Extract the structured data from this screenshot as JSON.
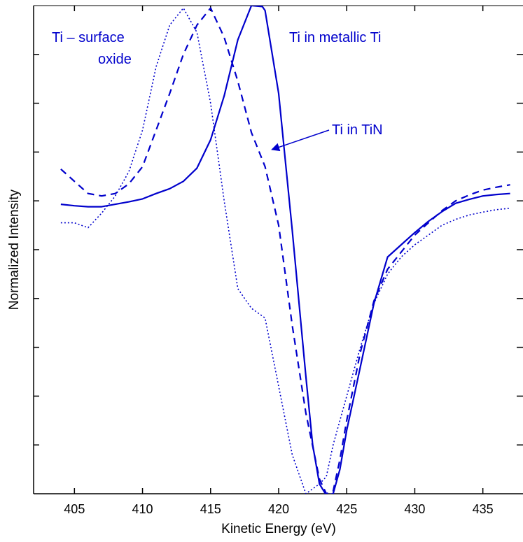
{
  "chart_data": {
    "type": "line",
    "xlabel": "Kinetic Energy (eV)",
    "ylabel": "Normalized Intensity",
    "xlim": [
      402,
      438
    ],
    "ylim": [
      0,
      1
    ],
    "x_ticks": [
      405,
      410,
      415,
      420,
      425,
      430,
      435
    ],
    "x_tick_labels": [
      "405",
      "410",
      "415",
      "420",
      "425",
      "430",
      "435"
    ],
    "y_ticks": [
      0.1,
      0.2,
      0.3,
      0.4,
      0.5,
      0.6,
      0.7,
      0.8,
      0.9
    ],
    "y_tick_labels_shown": false,
    "grid": false,
    "line_color": "#0000cc",
    "series": [
      {
        "style": "solid",
        "x": [
          404,
          405,
          406,
          407,
          408,
          409,
          410,
          411,
          412,
          413,
          414,
          415,
          416,
          417,
          418,
          418.8,
          419,
          420,
          421,
          422,
          422.5,
          423,
          423.5,
          424,
          424.5,
          425,
          426,
          427,
          428,
          429,
          430,
          431,
          432,
          433,
          434,
          435,
          436,
          437
        ],
        "y": [
          0.593,
          0.59,
          0.588,
          0.588,
          0.593,
          0.598,
          0.604,
          0.615,
          0.625,
          0.64,
          0.667,
          0.725,
          0.815,
          0.93,
          1.0,
          0.998,
          0.99,
          0.82,
          0.54,
          0.24,
          0.1,
          0.02,
          -0.003,
          0.0,
          0.05,
          0.13,
          0.26,
          0.39,
          0.485,
          0.51,
          0.535,
          0.558,
          0.578,
          0.595,
          0.603,
          0.61,
          0.613,
          0.615
        ]
      },
      {
        "style": "dashed",
        "x": [
          404,
          405,
          406,
          407,
          408,
          409,
          410,
          411,
          412,
          413,
          414,
          415,
          416,
          417,
          418,
          419,
          420,
          421,
          422,
          423,
          423.5,
          424,
          424.5,
          425,
          426,
          427,
          428,
          429,
          430,
          431,
          432,
          433,
          434,
          435,
          436,
          437
        ],
        "y": [
          0.665,
          0.64,
          0.615,
          0.61,
          0.615,
          0.635,
          0.67,
          0.745,
          0.82,
          0.9,
          0.96,
          0.995,
          0.935,
          0.845,
          0.74,
          0.67,
          0.55,
          0.345,
          0.165,
          0.03,
          0.0,
          0.005,
          0.07,
          0.15,
          0.29,
          0.395,
          0.46,
          0.495,
          0.53,
          0.555,
          0.58,
          0.6,
          0.612,
          0.622,
          0.628,
          0.633
        ]
      },
      {
        "style": "dotted",
        "x": [
          404,
          405,
          406,
          407,
          408,
          409,
          410,
          411,
          412,
          413,
          414,
          415,
          416,
          417,
          418,
          419,
          420,
          421,
          422,
          423,
          423.5,
          424,
          425,
          426,
          427,
          428,
          429,
          430,
          431,
          432,
          433,
          434,
          435,
          436,
          437
        ],
        "y": [
          0.555,
          0.555,
          0.545,
          0.575,
          0.61,
          0.66,
          0.745,
          0.875,
          0.96,
          0.995,
          0.945,
          0.8,
          0.6,
          0.42,
          0.38,
          0.36,
          0.22,
          0.08,
          0.0,
          0.02,
          0.035,
          0.1,
          0.2,
          0.3,
          0.39,
          0.45,
          0.485,
          0.51,
          0.53,
          0.55,
          0.562,
          0.571,
          0.577,
          0.582,
          0.585
        ]
      }
    ],
    "annotations": [
      {
        "lines": [
          "Ti – surface",
          "oxide"
        ]
      },
      {
        "lines": [
          "Ti in metallic Ti"
        ]
      },
      {
        "lines": [
          "Ti in TiN"
        ],
        "arrow_to": {
          "x": 419.5,
          "y": 0.705
        }
      }
    ]
  }
}
